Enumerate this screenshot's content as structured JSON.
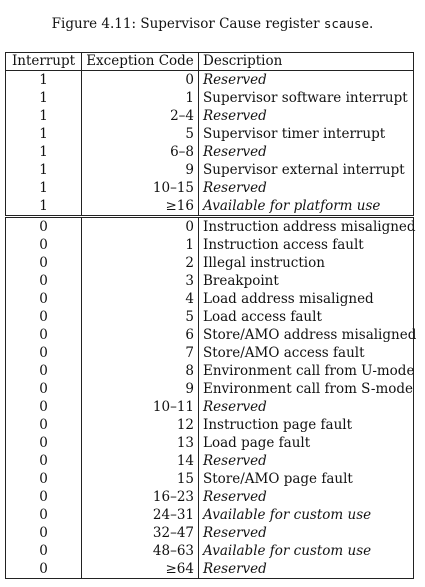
{
  "caption": {
    "prefix": "Figure 4.11: Supervisor Cause register",
    "code": "scause",
    "suffix": "."
  },
  "table": {
    "headers": [
      "Interrupt",
      "Exception Code",
      "Description"
    ],
    "rows": [
      {
        "interrupt": "1",
        "code": "0",
        "description": "Reserved",
        "italic": true
      },
      {
        "interrupt": "1",
        "code": "1",
        "description": "Supervisor software interrupt",
        "italic": false
      },
      {
        "interrupt": "1",
        "code": "2–4",
        "description": "Reserved",
        "italic": true
      },
      {
        "interrupt": "1",
        "code": "5",
        "description": "Supervisor timer interrupt",
        "italic": false
      },
      {
        "interrupt": "1",
        "code": "6–8",
        "description": "Reserved",
        "italic": true
      },
      {
        "interrupt": "1",
        "code": "9",
        "description": "Supervisor external interrupt",
        "italic": false
      },
      {
        "interrupt": "1",
        "code": "10–15",
        "description": "Reserved",
        "italic": true
      },
      {
        "interrupt": "1",
        "code": "≥16",
        "description": "Available for platform use",
        "italic": true
      },
      {
        "interrupt": "0",
        "code": "0",
        "description": "Instruction address misaligned",
        "italic": false
      },
      {
        "interrupt": "0",
        "code": "1",
        "description": "Instruction access fault",
        "italic": false
      },
      {
        "interrupt": "0",
        "code": "2",
        "description": "Illegal instruction",
        "italic": false
      },
      {
        "interrupt": "0",
        "code": "3",
        "description": "Breakpoint",
        "italic": false
      },
      {
        "interrupt": "0",
        "code": "4",
        "description": "Load address misaligned",
        "italic": false
      },
      {
        "interrupt": "0",
        "code": "5",
        "description": "Load access fault",
        "italic": false
      },
      {
        "interrupt": "0",
        "code": "6",
        "description": "Store/AMO address misaligned",
        "italic": false
      },
      {
        "interrupt": "0",
        "code": "7",
        "description": "Store/AMO access fault",
        "italic": false
      },
      {
        "interrupt": "0",
        "code": "8",
        "description": "Environment call from U-mode",
        "italic": false
      },
      {
        "interrupt": "0",
        "code": "9",
        "description": "Environment call from S-mode",
        "italic": false
      },
      {
        "interrupt": "0",
        "code": "10–11",
        "description": "Reserved",
        "italic": true
      },
      {
        "interrupt": "0",
        "code": "12",
        "description": "Instruction page fault",
        "italic": false
      },
      {
        "interrupt": "0",
        "code": "13",
        "description": "Load page fault",
        "italic": false
      },
      {
        "interrupt": "0",
        "code": "14",
        "description": "Reserved",
        "italic": true
      },
      {
        "interrupt": "0",
        "code": "15",
        "description": "Store/AMO page fault",
        "italic": false
      },
      {
        "interrupt": "0",
        "code": "16–23",
        "description": "Reserved",
        "italic": true
      },
      {
        "interrupt": "0",
        "code": "24–31",
        "description": "Available for custom use",
        "italic": true
      },
      {
        "interrupt": "0",
        "code": "32–47",
        "description": "Reserved",
        "italic": true
      },
      {
        "interrupt": "0",
        "code": "48–63",
        "description": "Available for custom use",
        "italic": true
      },
      {
        "interrupt": "0",
        "code": "≥64",
        "description": "Reserved",
        "italic": true
      }
    ]
  }
}
